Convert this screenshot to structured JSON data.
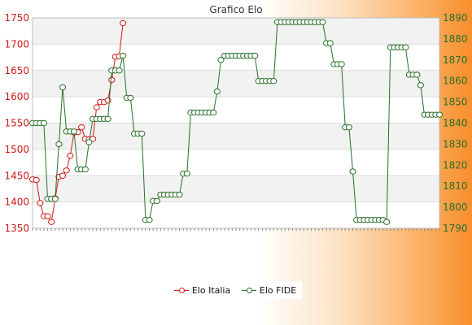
{
  "chart_data": {
    "type": "line",
    "title": "Grafico Elo",
    "left_axis": {
      "ylim": [
        1350,
        1750
      ],
      "ticks": [
        1350,
        1400,
        1450,
        1500,
        1550,
        1600,
        1650,
        1700,
        1750
      ],
      "color": "#d01818"
    },
    "right_axis": {
      "ylim": [
        1790,
        1890
      ],
      "ticks": [
        1790,
        1800,
        1810,
        1820,
        1830,
        1840,
        1850,
        1860,
        1870,
        1880,
        1890
      ],
      "color": "#287028"
    },
    "grid": true,
    "legend_position": "bottom-center",
    "series": [
      {
        "name": "Elo Italia",
        "axis": "left",
        "color": "#d01818",
        "values": [
          1443,
          1442,
          1398,
          1373,
          1373,
          1362,
          1407,
          1448,
          1450,
          1460,
          1488,
          1532,
          1533,
          1542,
          1520,
          1519,
          1520,
          1580,
          1590,
          1590,
          1593,
          1632,
          1676,
          1677,
          1740
        ]
      },
      {
        "name": "Elo FIDE",
        "axis": "right",
        "color": "#287028",
        "values": [
          1840,
          1840,
          1840,
          1840,
          1804,
          1804,
          1804,
          1830,
          1857,
          1836,
          1836,
          1836,
          1818,
          1818,
          1818,
          1831,
          1842,
          1842,
          1842,
          1842,
          1842,
          1865,
          1865,
          1865,
          1872,
          1852,
          1852,
          1835,
          1835,
          1835,
          1794,
          1794,
          1803,
          1803,
          1806,
          1806,
          1806,
          1806,
          1806,
          1806,
          1816,
          1816,
          1845,
          1845,
          1845,
          1845,
          1845,
          1845,
          1845,
          1855,
          1870,
          1872,
          1872,
          1872,
          1872,
          1872,
          1872,
          1872,
          1872,
          1872,
          1860,
          1860,
          1860,
          1860,
          1860,
          1888,
          1888,
          1888,
          1888,
          1888,
          1888,
          1888,
          1888,
          1888,
          1888,
          1888,
          1888,
          1888,
          1878,
          1878,
          1868,
          1868,
          1868,
          1838,
          1838,
          1817,
          1794,
          1794,
          1794,
          1794,
          1794,
          1794,
          1794,
          1794,
          1793,
          1876,
          1876,
          1876,
          1876,
          1876,
          1863,
          1863,
          1863,
          1858,
          1844,
          1844,
          1844,
          1844,
          1844
        ]
      }
    ]
  }
}
